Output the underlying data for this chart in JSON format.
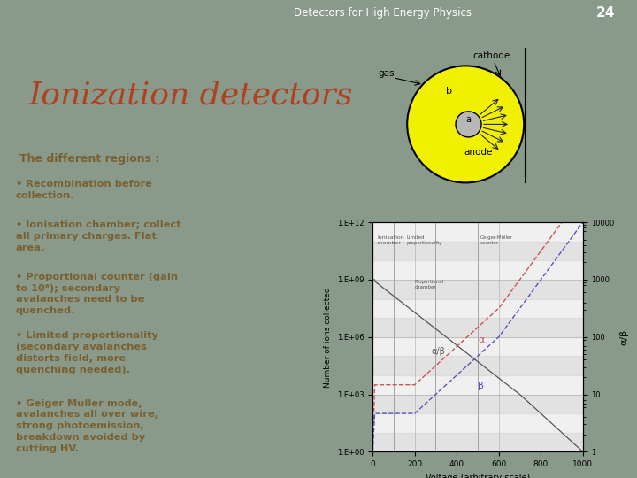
{
  "slide_title": "Detectors for High Energy Physics",
  "slide_number": "24",
  "main_title": "Ionization detectors",
  "header_bg": "#8a9a8a",
  "content_bg": "#ffffff",
  "main_title_color": "#b04020",
  "body_text_color": "#7a6030",
  "header_text_color": "#ffffff",
  "bullet_header": "The different regions :",
  "bullets": [
    "Recombination before\ncollection.",
    "Ionisation chamber; collect\nall primary charges. Flat\narea.",
    "Proportional counter (gain\nto 10⁶); secondary\navalanches need to be\nquenched.",
    "Limited proportionality\n(secondary avalanches\ndistorts field, more\nquenching needed).",
    "Geiger Muller mode,\navalanches all over wire,\nstrong photoemission,\nbreakdown avoided by\ncutting HV."
  ],
  "plot_xlabel": "Voltage (arbitrary scale)",
  "plot_ylabel": "Number of ions collected",
  "plot_ylabel2": "α/β",
  "alpha_label": "α",
  "beta_label": "β",
  "alpha_beta_label": "α/β",
  "alpha_color": "#cc5555",
  "beta_color": "#5555bb",
  "ratio_color": "#555555"
}
